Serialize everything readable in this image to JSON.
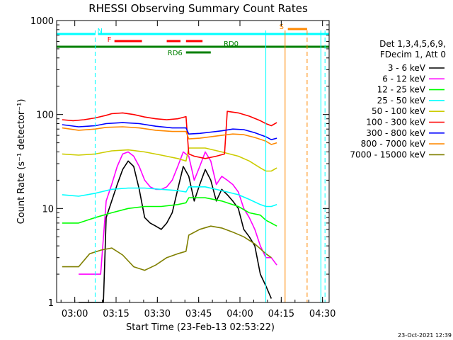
{
  "chart_data": {
    "type": "line",
    "title": "RHESSI Observing Summary Count Rates",
    "xlabel": "Start Time (23-Feb-13 02:53:22)",
    "ylabel": "Count Rate (s⁻¹ detector⁻¹)",
    "x_unit": "minutes since 02:53:22",
    "xlim": [
      0,
      99
    ],
    "ylim": [
      1,
      1000
    ],
    "yscale": "log",
    "x_ticks": [
      {
        "t": 6.6,
        "label": "03:00"
      },
      {
        "t": 21.6,
        "label": "03:15"
      },
      {
        "t": 36.6,
        "label": "03:30"
      },
      {
        "t": 51.6,
        "label": "03:45"
      },
      {
        "t": 66.6,
        "label": "04:00"
      },
      {
        "t": 81.6,
        "label": "04:15"
      },
      {
        "t": 96.6,
        "label": "04:30"
      }
    ],
    "y_ticks": [
      {
        "v": 1,
        "label": "1"
      },
      {
        "v": 10,
        "label": "10"
      },
      {
        "v": 100,
        "label": "100"
      },
      {
        "v": 1000,
        "label": "1000"
      }
    ],
    "legend_header": [
      "Det 1,3,4,5,6,9,",
      "FDecim 1, Att 0"
    ],
    "series": [
      {
        "name": "3 - 6 keV",
        "color": "#000000",
        "points": [
          [
            8,
            1.0
          ],
          [
            17,
            1.0
          ],
          [
            18,
            8
          ],
          [
            20,
            12
          ],
          [
            22,
            18
          ],
          [
            24,
            26
          ],
          [
            26,
            32
          ],
          [
            28,
            28
          ],
          [
            30,
            16
          ],
          [
            32,
            8
          ],
          [
            34,
            7
          ],
          [
            36,
            6.5
          ],
          [
            38,
            6
          ],
          [
            40,
            7
          ],
          [
            42,
            9
          ],
          [
            44,
            16
          ],
          [
            46,
            28
          ],
          [
            48,
            22
          ],
          [
            50,
            12
          ],
          [
            52,
            18
          ],
          [
            54,
            26
          ],
          [
            56,
            20
          ],
          [
            58,
            12
          ],
          [
            60,
            16
          ],
          [
            62,
            14
          ],
          [
            64,
            12
          ],
          [
            66,
            10
          ],
          [
            68,
            6
          ],
          [
            70,
            5
          ],
          [
            72,
            4
          ],
          [
            74,
            2
          ],
          [
            76,
            1.5
          ],
          [
            78,
            1.1
          ]
        ]
      },
      {
        "name": "6 - 12 keV",
        "color": "#ff00ff",
        "points": [
          [
            8,
            2.0
          ],
          [
            16,
            2.0
          ],
          [
            18,
            12
          ],
          [
            20,
            18
          ],
          [
            22,
            28
          ],
          [
            24,
            38
          ],
          [
            26,
            40
          ],
          [
            28,
            36
          ],
          [
            30,
            28
          ],
          [
            32,
            20
          ],
          [
            34,
            17
          ],
          [
            36,
            16
          ],
          [
            38,
            16
          ],
          [
            40,
            17
          ],
          [
            42,
            20
          ],
          [
            44,
            28
          ],
          [
            46,
            40
          ],
          [
            48,
            36
          ],
          [
            50,
            20
          ],
          [
            52,
            28
          ],
          [
            54,
            40
          ],
          [
            56,
            32
          ],
          [
            58,
            18
          ],
          [
            60,
            22
          ],
          [
            62,
            20
          ],
          [
            64,
            18
          ],
          [
            66,
            15
          ],
          [
            68,
            10
          ],
          [
            70,
            8
          ],
          [
            72,
            6
          ],
          [
            74,
            4
          ],
          [
            76,
            3
          ],
          [
            78,
            3
          ],
          [
            80,
            2.5
          ]
        ]
      },
      {
        "name": "12 - 25 keV",
        "color": "#00ff00",
        "points": [
          [
            2,
            7
          ],
          [
            8,
            7
          ],
          [
            14,
            8
          ],
          [
            20,
            9
          ],
          [
            26,
            10
          ],
          [
            32,
            10.5
          ],
          [
            38,
            10.5
          ],
          [
            44,
            11
          ],
          [
            47,
            11.5
          ],
          [
            48,
            13
          ],
          [
            54,
            13
          ],
          [
            60,
            12
          ],
          [
            66,
            10.5
          ],
          [
            70,
            9
          ],
          [
            74,
            8.5
          ],
          [
            76,
            7.5
          ],
          [
            78,
            7
          ],
          [
            80,
            6.5
          ]
        ]
      },
      {
        "name": "25 - 50 keV",
        "color": "#00ffff",
        "points": [
          [
            2,
            14
          ],
          [
            8,
            13.5
          ],
          [
            14,
            14.5
          ],
          [
            20,
            16
          ],
          [
            26,
            16.5
          ],
          [
            32,
            16.5
          ],
          [
            38,
            16
          ],
          [
            44,
            15.5
          ],
          [
            47,
            15
          ],
          [
            48,
            17
          ],
          [
            54,
            17
          ],
          [
            60,
            15.5
          ],
          [
            66,
            14
          ],
          [
            70,
            12.5
          ],
          [
            74,
            11
          ],
          [
            76,
            10.5
          ],
          [
            78,
            10.5
          ],
          [
            80,
            11
          ]
        ]
      },
      {
        "name": "50 - 100 keV",
        "color": "#cccc00",
        "points": [
          [
            2,
            38
          ],
          [
            8,
            37
          ],
          [
            14,
            38
          ],
          [
            20,
            41
          ],
          [
            26,
            42
          ],
          [
            32,
            40
          ],
          [
            38,
            37
          ],
          [
            44,
            34
          ],
          [
            47,
            32
          ],
          [
            48,
            44
          ],
          [
            54,
            44
          ],
          [
            60,
            40
          ],
          [
            66,
            36
          ],
          [
            70,
            32
          ],
          [
            74,
            27
          ],
          [
            76,
            25
          ],
          [
            78,
            25
          ],
          [
            80,
            27
          ]
        ]
      },
      {
        "name": "100 - 300 keV",
        "color": "#ff0000",
        "points": [
          [
            2,
            88
          ],
          [
            6,
            86
          ],
          [
            10,
            88
          ],
          [
            14,
            92
          ],
          [
            18,
            98
          ],
          [
            20,
            102
          ],
          [
            24,
            104
          ],
          [
            28,
            100
          ],
          [
            32,
            94
          ],
          [
            36,
            90
          ],
          [
            40,
            88
          ],
          [
            44,
            90
          ],
          [
            47,
            95
          ],
          [
            48,
            38
          ],
          [
            50,
            36
          ],
          [
            54,
            34
          ],
          [
            58,
            36
          ],
          [
            61,
            38
          ],
          [
            62,
            108
          ],
          [
            66,
            104
          ],
          [
            70,
            96
          ],
          [
            74,
            86
          ],
          [
            76,
            80
          ],
          [
            78,
            76
          ],
          [
            80,
            82
          ]
        ]
      },
      {
        "name": "300 - 800 keV",
        "color": "#0000ff",
        "points": [
          [
            2,
            78
          ],
          [
            8,
            74
          ],
          [
            14,
            76
          ],
          [
            18,
            80
          ],
          [
            24,
            82
          ],
          [
            30,
            80
          ],
          [
            36,
            75
          ],
          [
            42,
            72
          ],
          [
            47,
            72
          ],
          [
            48,
            62
          ],
          [
            52,
            63
          ],
          [
            56,
            65
          ],
          [
            60,
            67
          ],
          [
            64,
            70
          ],
          [
            68,
            69
          ],
          [
            72,
            64
          ],
          [
            76,
            58
          ],
          [
            78,
            54
          ],
          [
            80,
            56
          ]
        ]
      },
      {
        "name": "800 - 7000 keV",
        "color": "#ff8800",
        "points": [
          [
            2,
            72
          ],
          [
            8,
            68
          ],
          [
            14,
            70
          ],
          [
            18,
            73
          ],
          [
            24,
            74
          ],
          [
            30,
            72
          ],
          [
            36,
            68
          ],
          [
            42,
            66
          ],
          [
            47,
            66
          ],
          [
            48,
            55
          ],
          [
            52,
            56
          ],
          [
            56,
            58
          ],
          [
            60,
            60
          ],
          [
            64,
            62
          ],
          [
            68,
            61
          ],
          [
            72,
            57
          ],
          [
            76,
            52
          ],
          [
            78,
            48
          ],
          [
            80,
            50
          ]
        ]
      },
      {
        "name": "7000 - 15000 keV",
        "color": "#808000",
        "points": [
          [
            2,
            2.4
          ],
          [
            8,
            2.4
          ],
          [
            12,
            3.3
          ],
          [
            16,
            3.6
          ],
          [
            20,
            3.8
          ],
          [
            24,
            3.2
          ],
          [
            28,
            2.4
          ],
          [
            32,
            2.2
          ],
          [
            36,
            2.5
          ],
          [
            40,
            3.0
          ],
          [
            44,
            3.3
          ],
          [
            47,
            3.5
          ],
          [
            48,
            5.2
          ],
          [
            52,
            6
          ],
          [
            56,
            6.5
          ],
          [
            60,
            6.2
          ],
          [
            64,
            5.6
          ],
          [
            68,
            5
          ],
          [
            72,
            4.2
          ],
          [
            76,
            3.3
          ],
          [
            78,
            3
          ]
        ]
      }
    ],
    "vertical_lines": [
      {
        "t": 14,
        "color": "#00ffff",
        "style": "dashed"
      },
      {
        "t": 76,
        "color": "#00ffff",
        "style": "solid"
      },
      {
        "t": 83,
        "color": "#ff8800",
        "style": "solid"
      },
      {
        "t": 91,
        "color": "#ff8800",
        "style": "dashed"
      },
      {
        "t": 96,
        "color": "#00ffff",
        "style": "solid"
      },
      {
        "t": 97.5,
        "color": "#00ffff",
        "style": "dashed"
      }
    ],
    "flag_bars": [
      {
        "label": "N",
        "color": "#00ffff",
        "y": 1.0,
        "segments": [
          [
            0,
            14
          ],
          [
            15,
            99
          ]
        ]
      },
      {
        "label": "F",
        "color": "#ff0000",
        "y": 2.0,
        "segments": [
          [
            21,
            31
          ],
          [
            40,
            45
          ],
          [
            47,
            53
          ]
        ]
      },
      {
        "label": "RD0",
        "color": "#008000",
        "y": 3.0,
        "segments": [
          [
            0,
            99
          ]
        ]
      },
      {
        "label": "RD6",
        "color": "#008000",
        "y": 4.0,
        "segments": [
          [
            47,
            56
          ]
        ]
      },
      {
        "label": "S",
        "color": "#ff8800",
        "y": 1.5,
        "segments": [
          [
            84,
            91
          ]
        ]
      }
    ],
    "timestamp": "23-Oct-2021 12:39"
  }
}
